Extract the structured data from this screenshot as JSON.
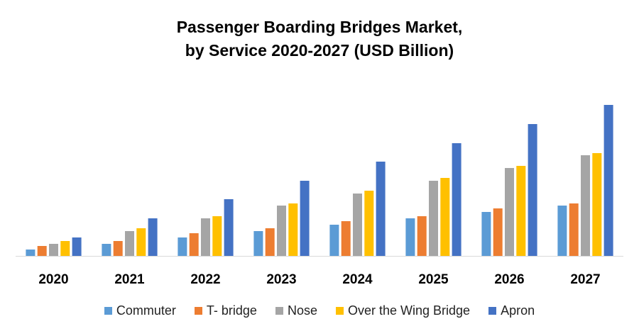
{
  "chart_data": {
    "type": "bar",
    "title": "Passenger Boarding Bridges Market,\nby Service 2020-2027 (USD Billion)",
    "title_lines": [
      "Passenger Boarding Bridges Market,",
      "by Service 2020-2027 (USD Billion)"
    ],
    "categories": [
      "2020",
      "2021",
      "2022",
      "2023",
      "2024",
      "2025",
      "2026",
      "2027"
    ],
    "series": [
      {
        "name": "Commuter",
        "color": "#5B9BD5",
        "values": [
          9,
          17,
          26,
          35,
          44,
          53,
          62,
          71
        ]
      },
      {
        "name": "T- bridge",
        "color": "#ED7D31",
        "values": [
          14,
          21,
          32,
          39,
          49,
          56,
          67,
          74
        ]
      },
      {
        "name": "Nose",
        "color": "#A5A5A5",
        "values": [
          17,
          35,
          53,
          71,
          88,
          106,
          124,
          142
        ]
      },
      {
        "name": "Over the Wing Bridge",
        "color": "#FFC000",
        "values": [
          21,
          39,
          56,
          74,
          92,
          110,
          127,
          145
        ]
      },
      {
        "name": "Apron",
        "color": "#4472C4",
        "values": [
          26,
          53,
          80,
          106,
          133,
          159,
          186,
          213
        ]
      }
    ],
    "ylim": [
      0,
      213
    ],
    "y_axis_visible": false,
    "grid": false,
    "legend_position": "bottom"
  }
}
